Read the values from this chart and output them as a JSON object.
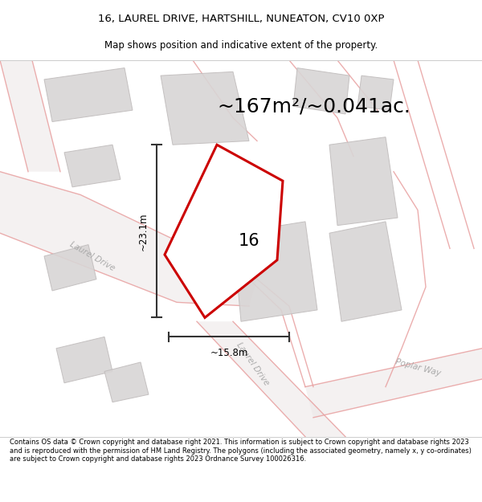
{
  "title_line1": "16, LAUREL DRIVE, HARTSHILL, NUNEATON, CV10 0XP",
  "title_line2": "Map shows position and indicative extent of the property.",
  "area_text": "~167m²/~0.041ac.",
  "dim_width": "~15.8m",
  "dim_height": "~23.1m",
  "number_label": "16",
  "footer_text": "Contains OS data © Crown copyright and database right 2021. This information is subject to Crown copyright and database rights 2023 and is reproduced with the permission of HM Land Registry. The polygons (including the associated geometry, namely x, y co-ordinates) are subject to Crown copyright and database rights 2023 Ordnance Survey 100026316.",
  "bg_color": "#f2f0f0",
  "building_color": "#d8d5d5",
  "building_edge": "#c0bcbc",
  "road_line_color": "#e8a0a0",
  "road_fill_color": "#ede8e8",
  "highlight_color": "#cc0000",
  "highlight_fill": "#ffffff",
  "dim_line_color": "#333333",
  "road_label_color": "#aaaaaa",
  "title_fontsize": 9.5,
  "subtitle_fontsize": 8.5,
  "area_fontsize": 18,
  "dim_fontsize": 8.5,
  "number_fontsize": 15,
  "footer_fontsize": 6.0
}
